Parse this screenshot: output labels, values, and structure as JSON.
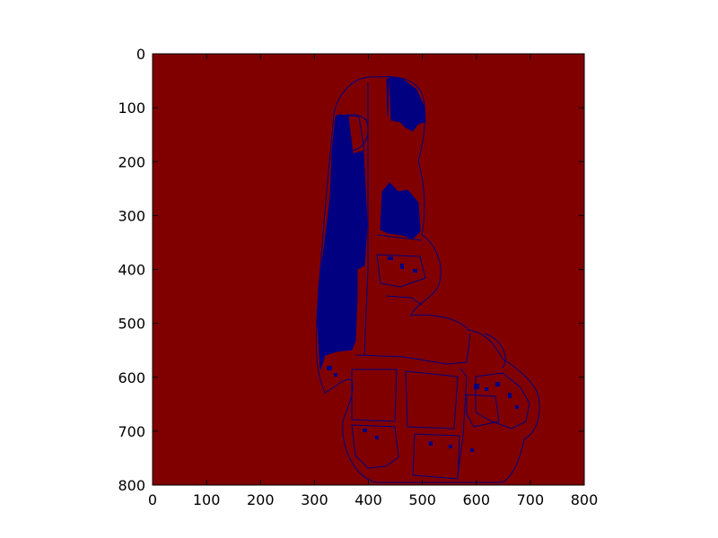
{
  "chart_data": {
    "type": "heatmap",
    "title": "",
    "xlabel": "",
    "ylabel": "",
    "xlim": [
      0,
      800
    ],
    "ylim": [
      800,
      0
    ],
    "xticks": [
      0,
      100,
      200,
      300,
      400,
      500,
      600,
      700,
      800
    ],
    "yticks": [
      0,
      100,
      200,
      300,
      400,
      500,
      600,
      700,
      800
    ],
    "xtick_labels": [
      "0",
      "100",
      "200",
      "300",
      "400",
      "500",
      "600",
      "700",
      "800"
    ],
    "ytick_labels": [
      "0",
      "100",
      "200",
      "300",
      "400",
      "500",
      "600",
      "700",
      "800"
    ],
    "colormap": "jet",
    "background_color": "#800000",
    "foreground_color": "#000080",
    "grid": false,
    "legend": "none"
  }
}
